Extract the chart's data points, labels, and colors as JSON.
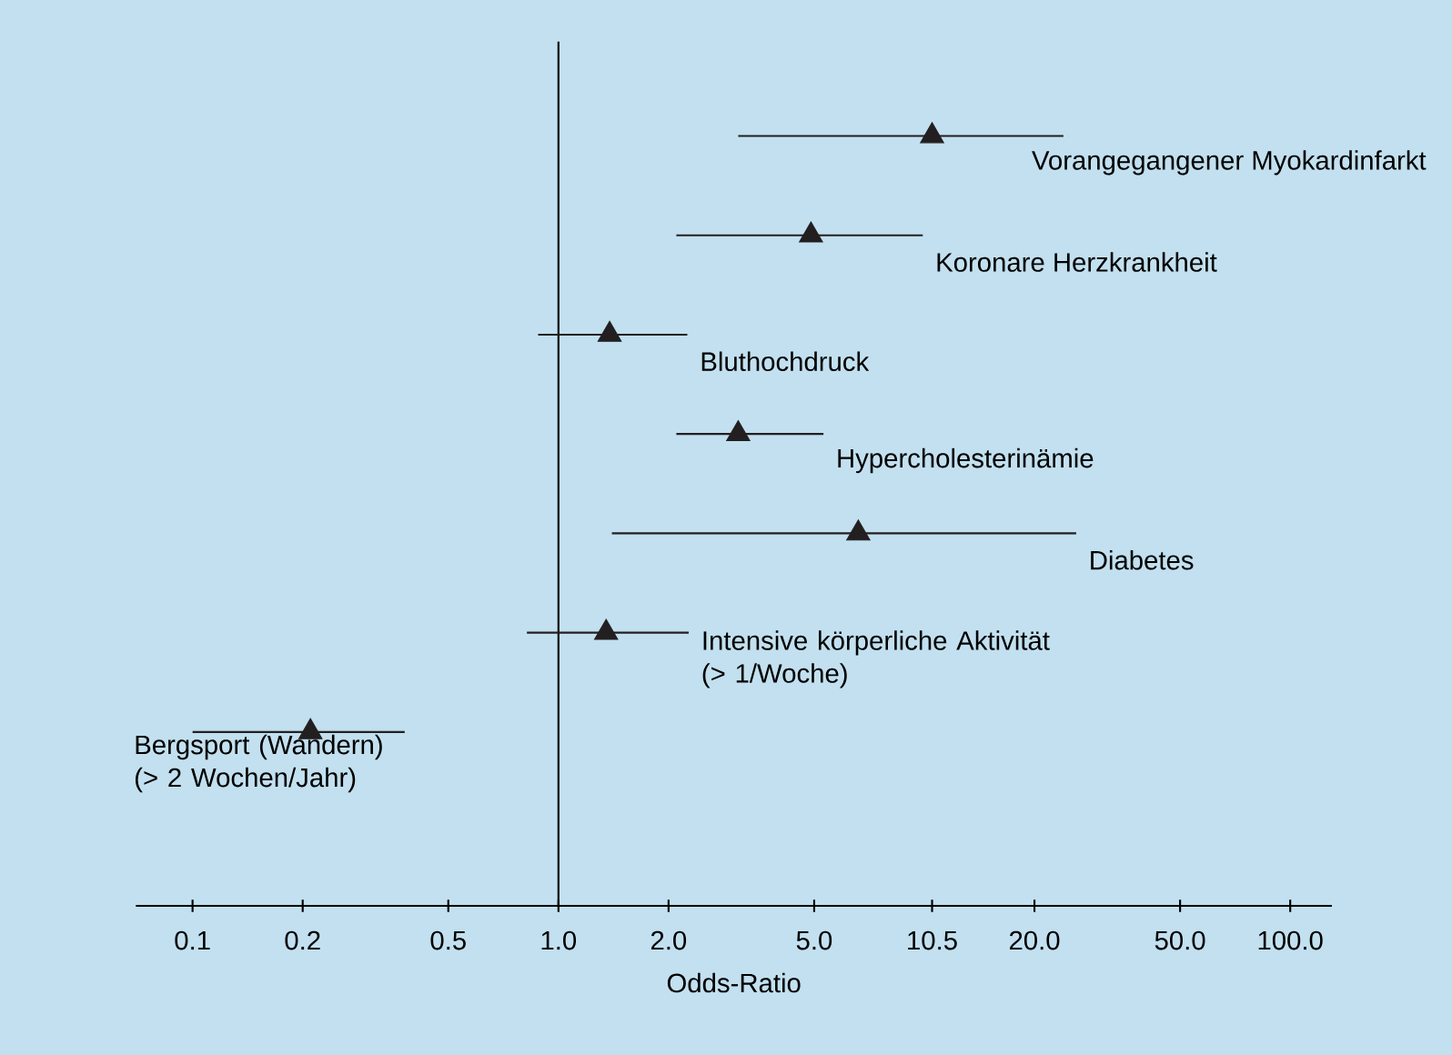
{
  "chart_data": {
    "type": "scatter",
    "orientation": "horizontal",
    "categories": [
      "Vorangegangener Myokardinfarkt",
      "Koronare Herzkrankheit",
      "Bluthochdruck",
      "Hypercholesterinämie",
      "Diabetes",
      "Intensive körperliche Aktivität (> 1/Woche)",
      "Bergsport (Wandern) (> 2 Wochen/Jahr)"
    ],
    "values": [
      10.5,
      4.9,
      1.38,
      3.1,
      6.6,
      1.35,
      0.21
    ],
    "errors": [
      [
        3.1,
        24
      ],
      [
        2.1,
        9.9
      ],
      [
        0.88,
        2.25
      ],
      [
        2.1,
        5.3
      ],
      [
        1.4,
        26
      ],
      [
        0.82,
        2.27
      ],
      [
        0.1,
        0.38
      ]
    ],
    "color": "#231f20",
    "marker": "triangle",
    "log": "x",
    "xlim": [
      0.07,
      130
    ],
    "xticks": [
      0.1,
      0.2,
      0.5,
      {
        "value": 1,
        "label": "1.0"
      },
      {
        "value": 2,
        "label": "2.0"
      },
      {
        "value": 5,
        "label": "5.0"
      },
      10.5,
      {
        "value": 20,
        "label": "20.0"
      },
      {
        "value": 50,
        "label": "50.0"
      },
      {
        "value": 100,
        "label": "100.0"
      }
    ],
    "xlabel": "Odds-Ratio",
    "tick_labels": "x",
    "ref_lines": [
      {
        "axis": "x",
        "value": 1
      }
    ]
  }
}
